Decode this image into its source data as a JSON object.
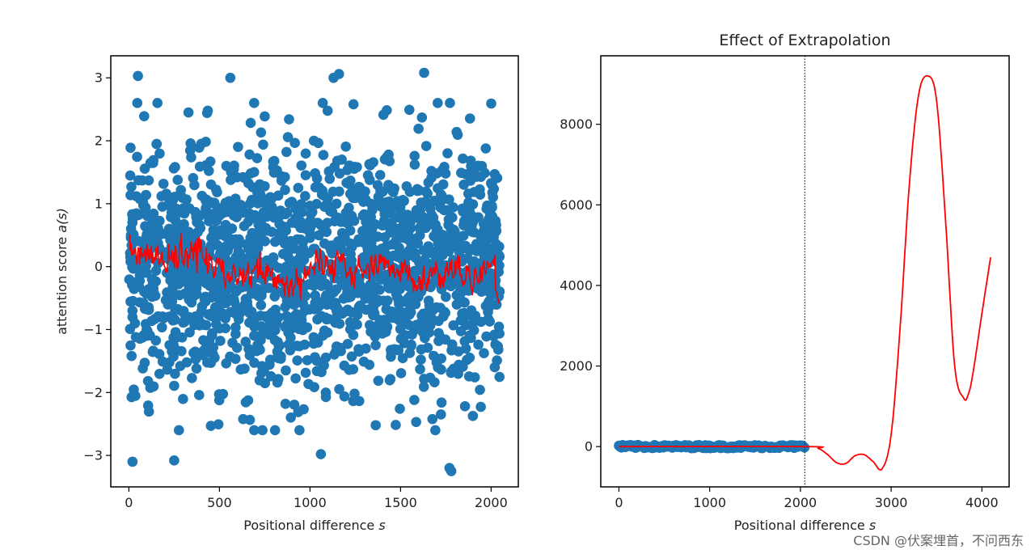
{
  "colors": {
    "scatter": "#1f77b4",
    "line": "#ff0000",
    "axes": "#000000"
  },
  "watermark": "CSDN @伏案埋首，不问西东",
  "chart_data": [
    {
      "type": "scatter",
      "title": "",
      "xlabel_prefix": "Positional difference ",
      "xlabel_var": "s",
      "ylabel_prefix": "attention score ",
      "ylabel_var": "a(s)",
      "xlim": [
        -100,
        2150
      ],
      "ylim": [
        -3.5,
        3.35
      ],
      "xticks": [
        0,
        500,
        1000,
        1500,
        2000
      ],
      "xtick_labels": [
        "0",
        "500",
        "1000",
        "1500",
        "2000"
      ],
      "yticks": [
        3,
        2,
        1,
        0,
        -1,
        -2,
        -3
      ],
      "ytick_labels": [
        "3",
        "2",
        "1",
        "0",
        "−1",
        "−2",
        "−3"
      ],
      "grid": false,
      "series": [
        {
          "kind": "scatter",
          "n_points": 2048,
          "x_range": [
            0,
            2047
          ],
          "y_distribution": "approximately standard normal, most points in [-2.5, 2.5], extremes near ±3.1",
          "color": "#1f77b4"
        },
        {
          "kind": "line",
          "x_range": [
            0,
            2047
          ],
          "y_approx_range": [
            -0.6,
            0.65
          ],
          "description": "noisy fit through scatter hovering around 0",
          "color": "#ff0000"
        }
      ],
      "highlight_points": [
        {
          "x": 50,
          "y": 3.03
        },
        {
          "x": 560,
          "y": 3.0
        },
        {
          "x": 1130,
          "y": 3.0
        },
        {
          "x": 1160,
          "y": 3.06
        },
        {
          "x": 1630,
          "y": 3.08
        },
        {
          "x": 20,
          "y": -3.1
        },
        {
          "x": 250,
          "y": -3.08
        },
        {
          "x": 1060,
          "y": -2.98
        },
        {
          "x": 1770,
          "y": -3.2
        },
        {
          "x": 1780,
          "y": -3.25
        }
      ]
    },
    {
      "type": "line",
      "title": "Effect of Extrapolation",
      "xlabel_prefix": "Positional difference ",
      "xlabel_var": "s",
      "xlim": [
        -200,
        4300
      ],
      "ylim": [
        -1000,
        9700
      ],
      "xticks": [
        0,
        1000,
        2000,
        3000,
        4000
      ],
      "xtick_labels": [
        "0",
        "1000",
        "2000",
        "3000",
        "4000"
      ],
      "yticks": [
        0,
        2000,
        4000,
        6000,
        8000
      ],
      "ytick_labels": [
        "0",
        "2000",
        "4000",
        "6000",
        "8000"
      ],
      "grid": false,
      "vline_x": 2048,
      "series": [
        {
          "kind": "scatter",
          "x_range": [
            0,
            2047
          ],
          "y_value": 0,
          "color": "#1f77b4"
        },
        {
          "kind": "line",
          "color": "#ff0000",
          "x": [
            0,
            2048,
            2200,
            2300,
            2400,
            2500,
            2600,
            2700,
            2800,
            2900,
            3000,
            3100,
            3200,
            3300,
            3400,
            3500,
            3600,
            3700,
            3800,
            3850,
            3900,
            4000,
            4096
          ],
          "y": [
            0,
            0,
            -50,
            -200,
            -400,
            -420,
            -230,
            -200,
            -370,
            -550,
            300,
            3000,
            6500,
            8700,
            9200,
            8600,
            5600,
            2000,
            1200,
            1300,
            1800,
            3300,
            4700
          ]
        }
      ]
    }
  ]
}
